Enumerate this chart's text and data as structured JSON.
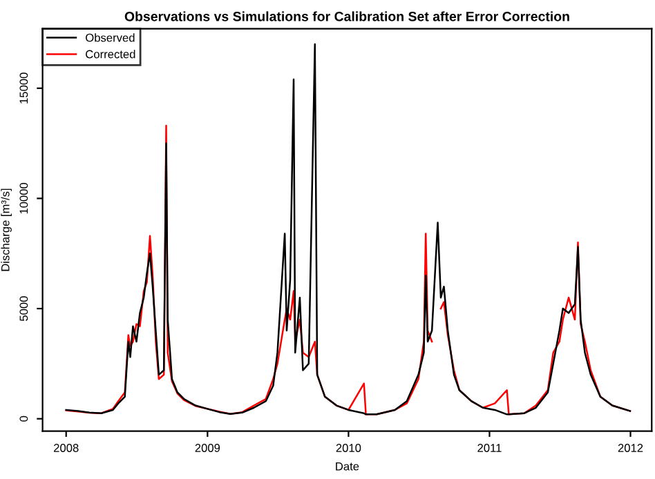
{
  "chart_data": {
    "type": "line",
    "title": "Observations vs Simulations for Calibration Set after Error Correction",
    "xlabel": "Date",
    "ylabel": "Discharge [m³/s]",
    "x": [
      "2008-01-01",
      "2008-02-01",
      "2008-03-01",
      "2008-04-01",
      "2008-05-01",
      "2008-05-15",
      "2008-06-01",
      "2008-06-10",
      "2008-06-15",
      "2008-06-22",
      "2008-07-01",
      "2008-07-10",
      "2008-07-20",
      "2008-07-28",
      "2008-08-05",
      "2008-08-12",
      "2008-08-20",
      "2008-08-28",
      "2008-09-10",
      "2008-09-16",
      "2008-09-20",
      "2008-10-01",
      "2008-10-15",
      "2008-11-01",
      "2008-12-01",
      "2009-01-01",
      "2009-02-01",
      "2009-03-01",
      "2009-04-01",
      "2009-05-01",
      "2009-06-01",
      "2009-06-20",
      "2009-07-01",
      "2009-07-20",
      "2009-07-25",
      "2009-08-03",
      "2009-08-12",
      "2009-08-16",
      "2009-08-28",
      "2009-09-05",
      "2009-09-20",
      "2009-10-06",
      "2009-10-12",
      "2009-11-01",
      "2009-12-01",
      "2010-01-01",
      "2010-02-10",
      "2010-02-15",
      "2010-03-15",
      "2010-05-01",
      "2010-06-01",
      "2010-07-01",
      "2010-07-15",
      "2010-07-20",
      "2010-07-25",
      "2010-08-05",
      "2010-08-20",
      "2010-08-28",
      "2010-09-05",
      "2010-09-15",
      "2010-10-01",
      "2010-10-15",
      "2010-11-15",
      "2010-12-15",
      "2011-01-15",
      "2011-02-15",
      "2011-02-20",
      "2011-04-01",
      "2011-05-01",
      "2011-06-01",
      "2011-06-15",
      "2011-07-01",
      "2011-07-10",
      "2011-07-25",
      "2011-08-10",
      "2011-08-18",
      "2011-08-25",
      "2011-09-05",
      "2011-09-20",
      "2011-10-15",
      "2011-11-15",
      "2011-12-31"
    ],
    "series": [
      {
        "name": "Corrected",
        "color": "#ff0000",
        "values": [
          380,
          330,
          270,
          250,
          450,
          800,
          1200,
          3800,
          3300,
          3500,
          4300,
          4200,
          5800,
          6200,
          8300,
          6500,
          3500,
          1800,
          2000,
          13300,
          3000,
          1700,
          1150,
          850,
          580,
          450,
          320,
          220,
          300,
          600,
          900,
          1800,
          2500,
          4500,
          5000,
          4500,
          5800,
          3500,
          4500,
          3000,
          2800,
          3500,
          2000,
          1000,
          600,
          400,
          1600,
          200,
          200,
          400,
          700,
          1800,
          3500,
          8400,
          4000,
          3500,
          null,
          5000,
          5300,
          3800,
          2200,
          1300,
          800,
          500,
          700,
          1300,
          200,
          250,
          600,
          1300,
          3000,
          3500,
          4500,
          5500,
          4500,
          8000,
          4300,
          3500,
          2200,
          1000,
          600,
          350
        ]
      },
      {
        "name": "Observed",
        "color": "#000000",
        "values": [
          400,
          350,
          280,
          250,
          400,
          700,
          1000,
          3500,
          2800,
          4200,
          3500,
          4800,
          5500,
          6600,
          7500,
          6000,
          4000,
          2000,
          2200,
          12500,
          4500,
          1800,
          1200,
          900,
          600,
          450,
          300,
          220,
          280,
          500,
          800,
          1500,
          3000,
          8400,
          4000,
          6300,
          15400,
          3000,
          5500,
          2200,
          2500,
          17000,
          2000,
          1000,
          600,
          400,
          250,
          200,
          200,
          400,
          800,
          2000,
          3000,
          6500,
          3500,
          4000,
          8900,
          5500,
          6000,
          4000,
          2000,
          1300,
          800,
          500,
          400,
          200,
          200,
          250,
          500,
          1200,
          2500,
          4000,
          5000,
          4800,
          5200,
          7800,
          4500,
          3000,
          2000,
          1000,
          600,
          350
        ]
      }
    ],
    "xlim": [
      "2007-11-01",
      "2012-02-25"
    ],
    "xticks": [
      {
        "value": "2008-01-01",
        "label": "2008"
      },
      {
        "value": "2009-01-01",
        "label": "2009"
      },
      {
        "value": "2010-01-01",
        "label": "2010"
      },
      {
        "value": "2011-01-01",
        "label": "2011"
      },
      {
        "value": "2012-01-01",
        "label": "2012"
      }
    ],
    "ylim": [
      -560,
      17700
    ],
    "yticks": [
      0,
      5000,
      10000,
      15000
    ],
    "legend": "top left",
    "grid": false,
    "marker": "none",
    "line_style": "solid"
  }
}
